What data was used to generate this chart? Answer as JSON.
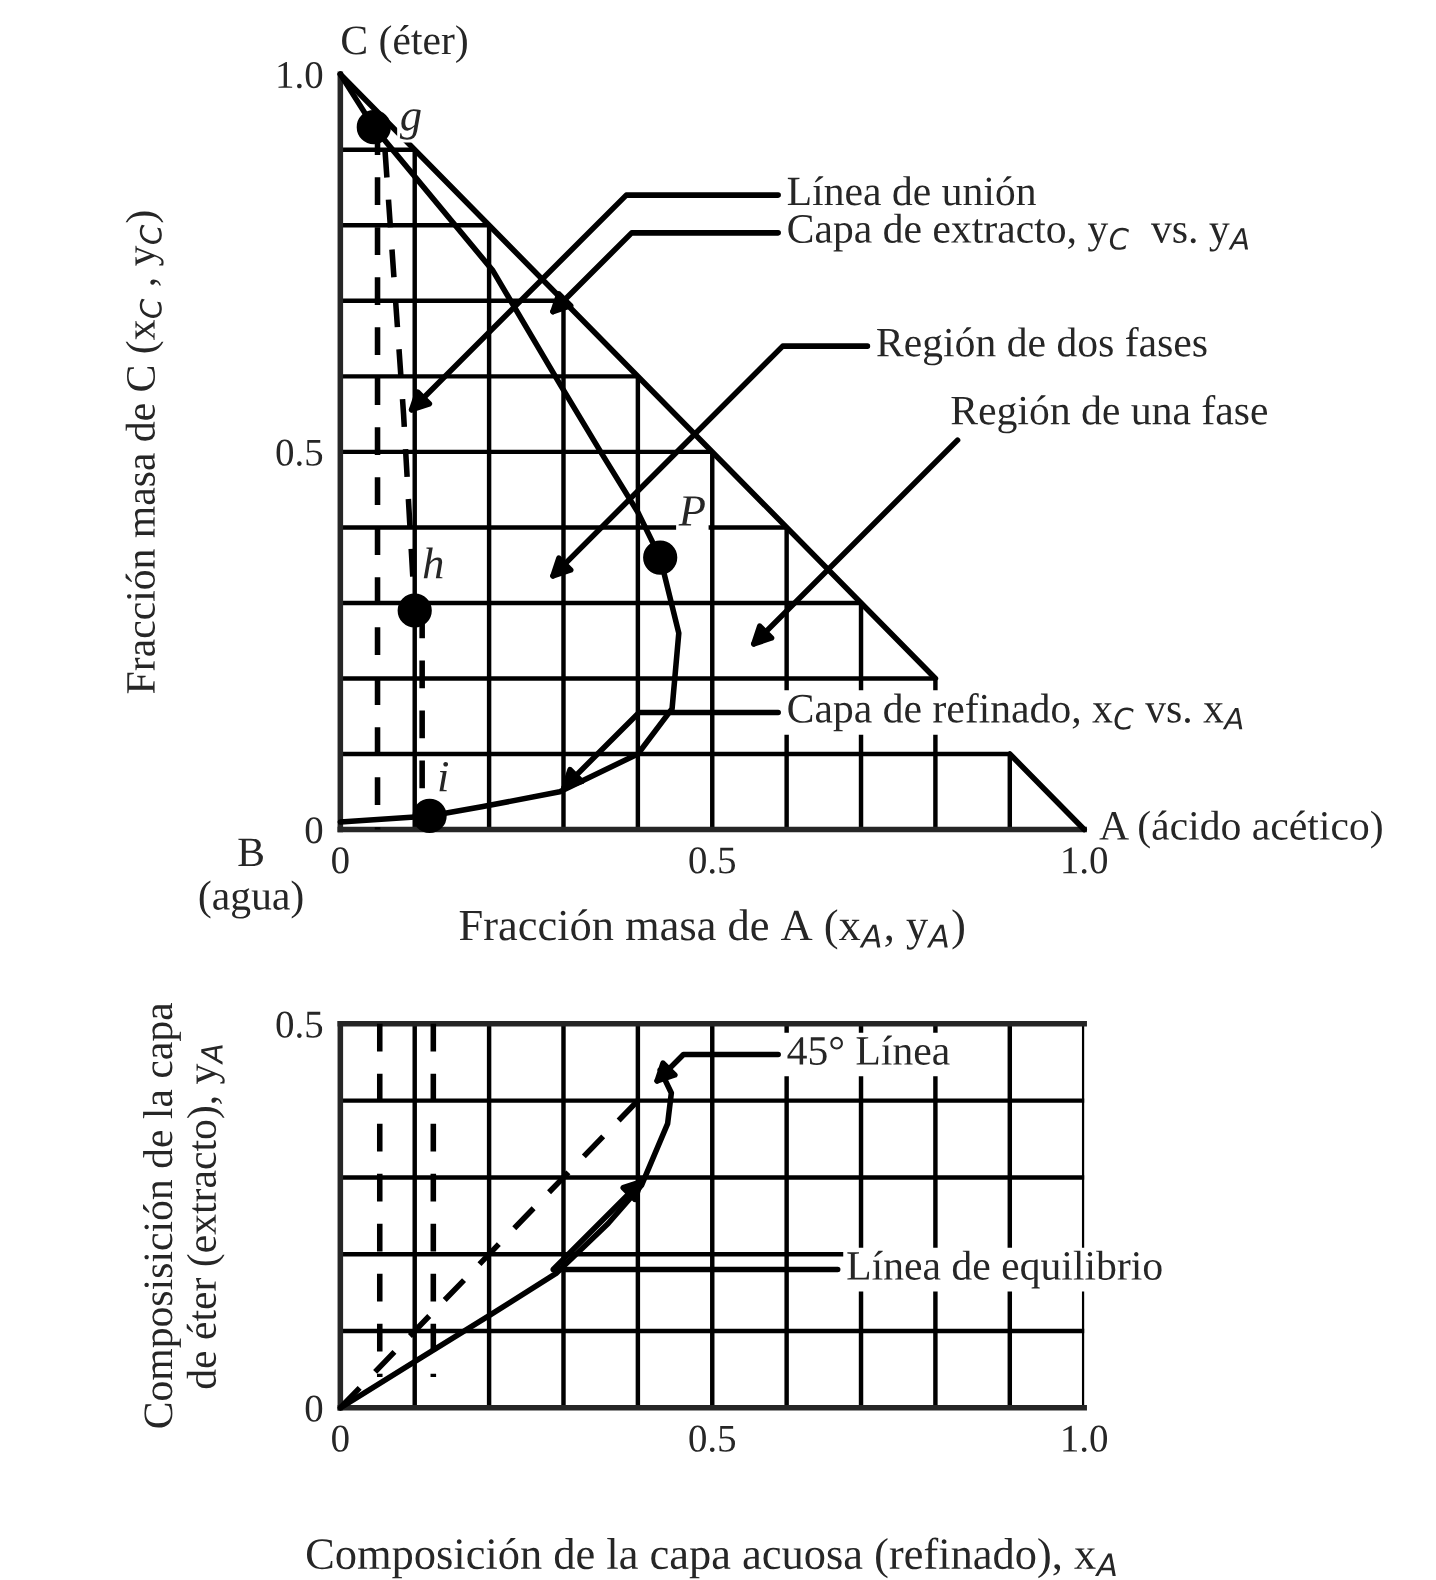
{
  "chart_data": [
    {
      "type": "line",
      "xlabel": "Fracción masa de A (x$_{A}$, y$_{A}$)",
      "ylabel": "Fracción masa de C (x$_{C}$ , y$_{C}$)",
      "xlim": [
        0,
        1.0
      ],
      "ylim": [
        0,
        1.0
      ],
      "xticks": [
        {
          "value": 0,
          "label": "0"
        },
        {
          "value": 0.1,
          "label": null
        },
        {
          "value": 0.2,
          "label": null
        },
        {
          "value": 0.3,
          "label": null
        },
        {
          "value": 0.4,
          "label": null
        },
        0.5,
        {
          "value": 0.6,
          "label": null
        },
        {
          "value": 0.7,
          "label": null
        },
        {
          "value": 0.8,
          "label": null
        },
        {
          "value": 0.9,
          "label": null
        },
        {
          "value": 1.0,
          "label": "1.0"
        }
      ],
      "yticks": [
        {
          "value": 0,
          "label": "0"
        },
        {
          "value": 0.1,
          "label": null
        },
        {
          "value": 0.2,
          "label": null
        },
        {
          "value": 0.3,
          "label": null
        },
        {
          "value": 0.4,
          "label": null
        },
        0.5,
        {
          "value": 0.6,
          "label": null
        },
        {
          "value": 0.7,
          "label": null
        },
        {
          "value": 0.8,
          "label": null
        },
        {
          "value": 0.9,
          "label": null
        },
        {
          "value": 1.0,
          "label": "1.0"
        }
      ],
      "grid": true,
      "series": [
        {
          "color": "#000000",
          "line_style": "solid",
          "x": [
            0,
            0.8,
            0.85,
            0.9,
            1.0
          ],
          "values": [
            1.0,
            0.2,
            null,
            0.1,
            0
          ]
        },
        {
          "color": "#000000",
          "line_style": "solid",
          "x": [
            0,
            0.045,
            0.205,
            0.295,
            0.35,
            0.4,
            0.43,
            0.455,
            0.446,
            0.4,
            0.295,
            0.19,
            0.12,
            0
          ],
          "values": [
            1.0,
            0.93,
            0.74,
            0.59,
            0.5,
            0.42,
            0.36,
            0.26,
            0.16,
            0.1,
            0.05,
            0.03,
            0.018,
            0.01
          ]
        },
        {
          "type": "line",
          "color": "#000000",
          "line_style": "dashed",
          "x": [
            0.05,
            0.05
          ],
          "values": [
            0.93,
            0
          ]
        },
        {
          "type": "line",
          "color": "#000000",
          "line_style": "dashed",
          "x": [
            0.06,
            0.085,
            0.1
          ],
          "values": [
            0.9,
            0.55,
            0.29
          ]
        },
        {
          "type": "line",
          "color": "#000000",
          "line_style": "dashed",
          "x": [
            0.11,
            0.11
          ],
          "values": [
            0.29,
            0
          ]
        },
        {
          "type": "scatter",
          "color": "#000000",
          "marker": "circle",
          "x": [
            0.045,
            0.1,
            0.12,
            0.43
          ],
          "values": [
            0.93,
            0.29,
            0.018,
            0.36
          ]
        }
      ],
      "annotations": [
        {
          "text": "g",
          "x": 0.045,
          "y": 0.93
        },
        {
          "text": "h",
          "x": 0.1,
          "y": 0.29
        },
        {
          "text": "i",
          "x": 0.12,
          "y": 0.018
        },
        {
          "text": "P",
          "x": 0.43,
          "y": 0.36
        },
        {
          "text": "Línea de unión",
          "x": 0.09,
          "y": 0.55
        },
        "Capa de extracto, y$_{C}$  vs. y$_{A}$",
        "Región de dos fases",
        "Región de una fase",
        {
          "text": "Capa de refinado, x$_{C}$ vs. x$_{A}$",
          "x": 0.295,
          "y": 0.05
        },
        "C (éter)",
        "B\n(agua)",
        "A (ácido acético)"
      ]
    },
    {
      "type": "line",
      "xlabel": "Composición de la capa acuosa (refinado), x$_{A}$",
      "ylabel": "Composisición de la capa\nde éter (extracto), y$_{A}$",
      "xlim": [
        0,
        1.0
      ],
      "ylim": [
        0,
        0.5
      ],
      "xticks": [
        {
          "value": 0,
          "label": "0"
        },
        {
          "value": 0.1,
          "label": null
        },
        {
          "value": 0.2,
          "label": null
        },
        {
          "value": 0.3,
          "label": null
        },
        {
          "value": 0.4,
          "label": null
        },
        0.5,
        {
          "value": 0.6,
          "label": null
        },
        {
          "value": 0.7,
          "label": null
        },
        {
          "value": 0.8,
          "label": null
        },
        {
          "value": 0.9,
          "label": null
        },
        {
          "value": 1.0,
          "label": "1.0"
        }
      ],
      "yticks": [
        {
          "value": 0,
          "label": "0"
        },
        {
          "value": 0.1,
          "label": null
        },
        {
          "value": 0.2,
          "label": null
        },
        {
          "value": 0.3,
          "label": null
        },
        {
          "value": 0.4,
          "label": null
        },
        0.5
      ],
      "grid": true,
      "series": [
        {
          "color": "#000000",
          "line_style": "solid",
          "x": [
            0,
            0.1,
            0.2,
            0.29,
            0.36,
            0.405,
            0.44,
            0.445,
            0.43
          ],
          "values": [
            0,
            0.06,
            0.12,
            0.175,
            0.24,
            0.29,
            0.37,
            0.41,
            0.44
          ]
        },
        {
          "type": "line",
          "color": "#000000",
          "line_style": "dashed",
          "x": [
            0,
            0.42
          ],
          "values": [
            0,
            0.42
          ]
        },
        {
          "type": "line",
          "color": "#000000",
          "line_style": "dashed",
          "x": [
            0.053,
            0.053
          ],
          "values": [
            0.5,
            0.04
          ]
        },
        {
          "type": "line",
          "color": "#000000",
          "line_style": "dashed",
          "x": [
            0.125,
            0.125
          ],
          "values": [
            0.5,
            0.04
          ]
        }
      ],
      "annotations": [
        {
          "text": "45° Línea",
          "x": 0.42,
          "y": 0.42
        },
        {
          "text": "Línea de equilibrio",
          "x": 0.41,
          "y": 0.3
        }
      ]
    }
  ]
}
